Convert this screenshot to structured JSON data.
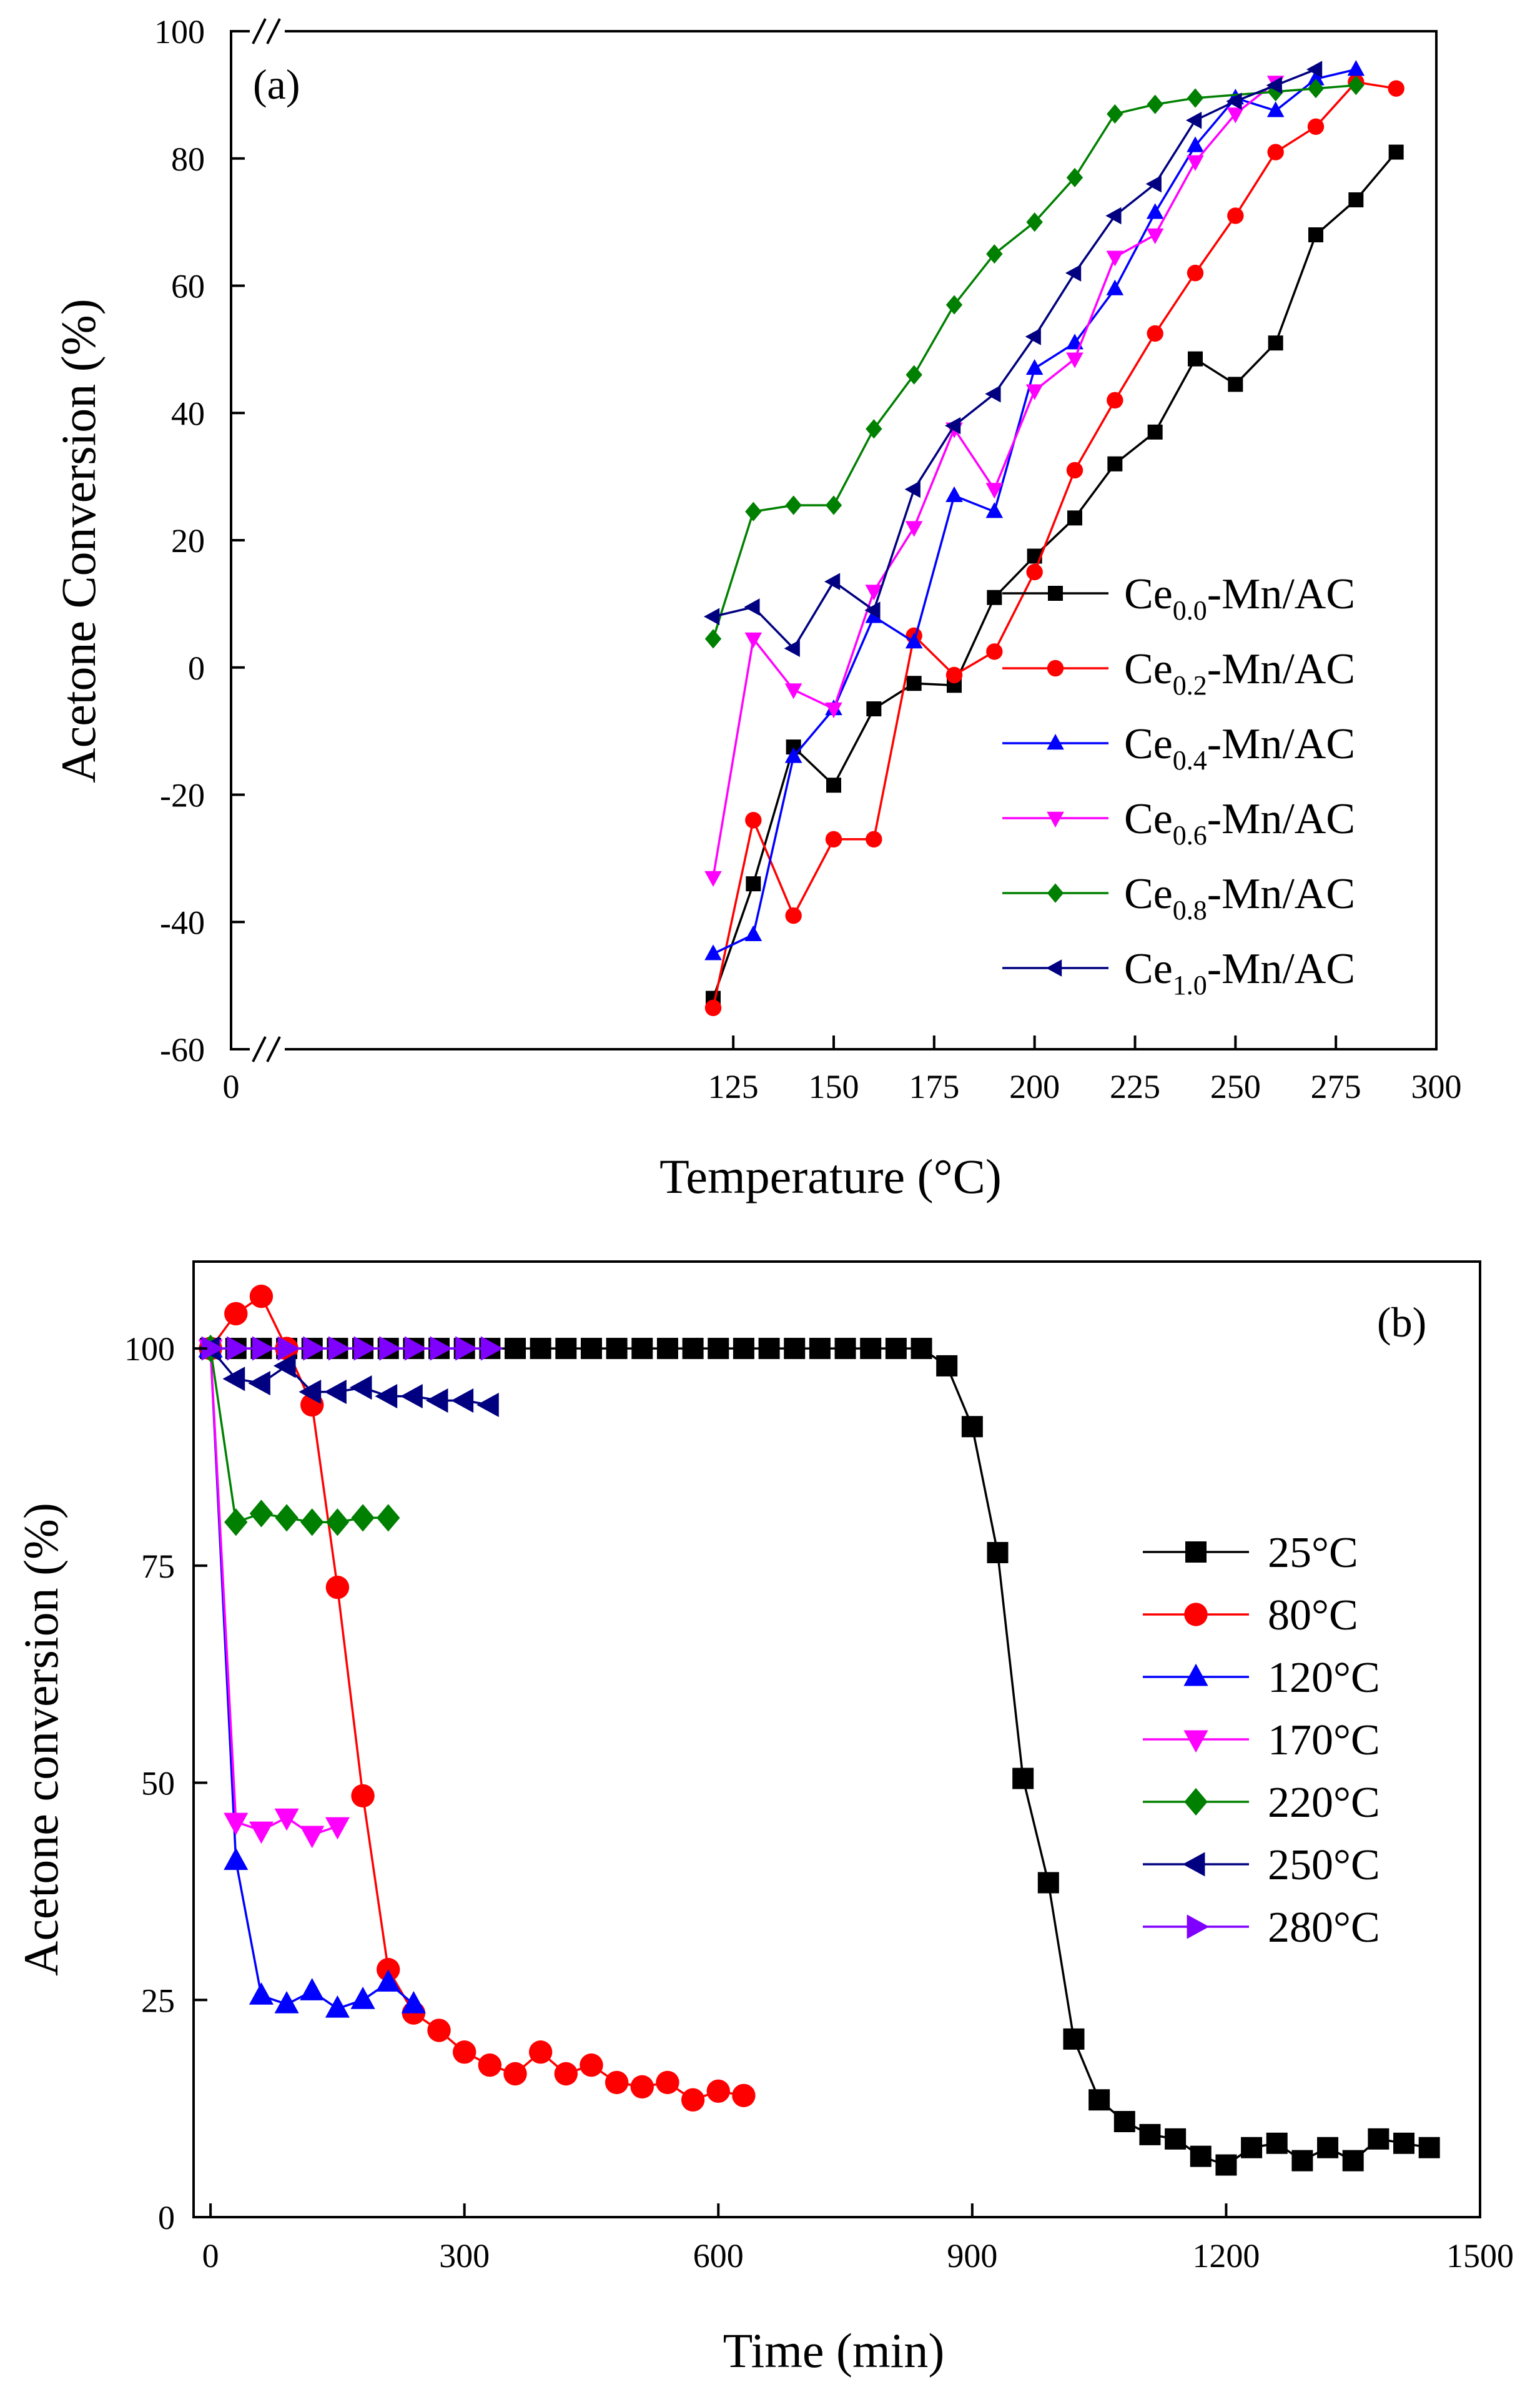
{
  "chart_data": [
    {
      "type": "line",
      "panel_label": "(a)",
      "xlabel": "Temperature (°C)",
      "ylabel": "Acetone Conversion (%)",
      "xlim": [
        0,
        300
      ],
      "ylim": [
        -60,
        100
      ],
      "axis_break": "x between 0 and 115; y below -60 and above 95",
      "x_ticks": [
        0,
        125,
        150,
        175,
        200,
        225,
        250,
        275,
        300
      ],
      "y_ticks": [
        -60,
        -40,
        -20,
        0,
        20,
        40,
        60,
        80,
        100
      ],
      "grid": false,
      "legend_position": "lower-right",
      "series": [
        {
          "name": "Ce0.0-Mn/AC",
          "legend_main": "Ce",
          "legend_sub": "0.0",
          "legend_tail": "-Mn/AC",
          "color": "#000000",
          "marker": "square",
          "x": [
            120,
            130,
            140,
            150,
            160,
            170,
            180,
            190,
            200,
            210,
            220,
            230,
            240,
            250,
            260,
            270,
            280,
            290
          ],
          "y": [
            -52,
            -34,
            -12.5,
            -18.5,
            -6.5,
            -2.5,
            -2.8,
            11,
            17.5,
            23.5,
            32,
            37,
            48.5,
            44.5,
            51,
            68,
            73.5,
            81
          ]
        },
        {
          "name": "Ce0.2-Mn/AC",
          "legend_main": "Ce",
          "legend_sub": "0.2",
          "legend_tail": "-Mn/AC",
          "color": "#ff0000",
          "marker": "circle",
          "x": [
            120,
            130,
            140,
            150,
            160,
            170,
            180,
            190,
            200,
            210,
            220,
            230,
            240,
            250,
            260,
            270,
            280,
            290
          ],
          "y": [
            -53.5,
            -24,
            -39,
            -27,
            -27,
            5,
            -1.2,
            2.5,
            15,
            31,
            42,
            52.5,
            62,
            71,
            81,
            85,
            92,
            91
          ]
        },
        {
          "name": "Ce0.4-Mn/AC",
          "legend_main": "Ce",
          "legend_sub": "0.4",
          "legend_tail": "-Mn/AC",
          "color": "#0000ff",
          "marker": "triangle-up",
          "x": [
            120,
            130,
            140,
            150,
            160,
            170,
            180,
            190,
            200,
            210,
            220,
            230,
            240,
            250,
            260,
            270,
            280
          ],
          "y": [
            -45,
            -42,
            -14,
            -6.5,
            8,
            4,
            27,
            24.5,
            47,
            51,
            59.5,
            71.5,
            82,
            89.5,
            87.5,
            92.5,
            94
          ]
        },
        {
          "name": "Ce0.6-Mn/AC",
          "legend_main": "Ce",
          "legend_sub": "0.6",
          "legend_tail": "-Mn/AC",
          "color": "#ff00ff",
          "marker": "triangle-down",
          "x": [
            120,
            130,
            140,
            150,
            160,
            170,
            180,
            190,
            200,
            210,
            220,
            230,
            240,
            250,
            260
          ],
          "y": [
            -33,
            4.5,
            -3.5,
            -6.5,
            12,
            22,
            37.5,
            28,
            43.5,
            48.5,
            64.5,
            68,
            79.5,
            87,
            92
          ]
        },
        {
          "name": "Ce0.8-Mn/AC",
          "legend_main": "Ce",
          "legend_sub": "0.8",
          "legend_tail": "-Mn/AC",
          "color": "#008000",
          "marker": "diamond",
          "x": [
            120,
            130,
            140,
            150,
            160,
            170,
            180,
            190,
            200,
            210,
            220,
            230,
            240,
            260,
            270,
            280
          ],
          "y": [
            4.5,
            24.5,
            25.5,
            25.5,
            37.5,
            46,
            57,
            65,
            70,
            77,
            87,
            88.5,
            89.5,
            90.5,
            91,
            91.5
          ]
        },
        {
          "name": "Ce1.0-Mn/AC",
          "legend_main": "Ce",
          "legend_sub": "1.0",
          "legend_tail": "-Mn/AC",
          "color": "#000080",
          "marker": "triangle-left",
          "x": [
            120,
            130,
            140,
            150,
            160,
            170,
            180,
            190,
            200,
            210,
            220,
            230,
            240,
            250,
            260,
            270
          ],
          "y": [
            8,
            9.5,
            3,
            13.5,
            9,
            28,
            38,
            43,
            52,
            62,
            71,
            76,
            86,
            89,
            91.5,
            94
          ]
        }
      ]
    },
    {
      "type": "line",
      "panel_label": "(b)",
      "xlabel": "Time (min)",
      "ylabel": "Acetone conversion (%)",
      "xlim": [
        -20,
        1500
      ],
      "ylim": [
        0,
        110
      ],
      "x_ticks": [
        0,
        300,
        600,
        900,
        1200,
        1500
      ],
      "y_ticks": [
        0,
        25,
        50,
        75,
        100
      ],
      "grid": false,
      "legend_position": "right",
      "series": [
        {
          "name": "25°C",
          "color": "#000000",
          "marker": "square",
          "x": [
            0,
            30,
            60,
            90,
            120,
            150,
            180,
            210,
            240,
            270,
            300,
            330,
            360,
            390,
            420,
            450,
            480,
            510,
            540,
            570,
            600,
            630,
            660,
            690,
            720,
            750,
            780,
            810,
            840,
            870,
            900,
            930,
            960,
            990,
            1020,
            1050,
            1080,
            1110,
            1140,
            1170,
            1200,
            1230,
            1260,
            1290,
            1320,
            1350,
            1380,
            1410,
            1440
          ],
          "y": [
            100,
            100,
            100,
            100,
            100,
            100,
            100,
            100,
            100,
            100,
            100,
            100,
            100,
            100,
            100,
            100,
            100,
            100,
            100,
            100,
            100,
            100,
            100,
            100,
            100,
            100,
            100,
            100,
            100,
            98,
            91,
            76.5,
            50.5,
            38.5,
            20.5,
            13.5,
            11,
            9.5,
            9,
            7,
            6,
            8,
            8.5,
            6.5,
            8,
            6.5,
            9,
            8.5,
            8
          ]
        },
        {
          "name": "80°C",
          "color": "#ff0000",
          "marker": "circle",
          "x": [
            0,
            30,
            60,
            90,
            120,
            150,
            180,
            210,
            240,
            270,
            300,
            330,
            360,
            390,
            420,
            450,
            480,
            510,
            540,
            570,
            600,
            630
          ],
          "y": [
            100,
            104,
            106,
            100,
            93.5,
            72.5,
            48.5,
            28.5,
            23.5,
            21.5,
            19,
            17.5,
            16.5,
            19,
            16.5,
            17.5,
            15.5,
            15,
            15.5,
            13.5,
            14.5,
            14
          ]
        },
        {
          "name": "120°C",
          "color": "#0000ff",
          "marker": "triangle-up",
          "x": [
            0,
            30,
            60,
            90,
            120,
            150,
            180,
            210,
            240
          ],
          "y": [
            100,
            41,
            25.5,
            24.5,
            26,
            24,
            25,
            27,
            24.5
          ]
        },
        {
          "name": "170°C",
          "color": "#ff00ff",
          "marker": "triangle-down",
          "x": [
            0,
            30,
            60,
            90,
            120,
            150
          ],
          "y": [
            100,
            45.5,
            44.5,
            46,
            44,
            45
          ]
        },
        {
          "name": "220°C",
          "color": "#008000",
          "marker": "diamond",
          "x": [
            0,
            30,
            60,
            90,
            120,
            150,
            180,
            210
          ],
          "y": [
            100,
            80,
            81,
            80.5,
            80,
            80,
            80.5,
            80.5
          ]
        },
        {
          "name": "250°C",
          "color": "#000080",
          "marker": "triangle-left",
          "x": [
            0,
            30,
            60,
            90,
            120,
            150,
            180,
            210,
            240,
            270,
            300,
            330
          ],
          "y": [
            100,
            96.5,
            96,
            98,
            95,
            95,
            95.5,
            94.5,
            94.5,
            94,
            94,
            93.5
          ]
        },
        {
          "name": "280°C",
          "color": "#8000ff",
          "marker": "triangle-right",
          "x": [
            0,
            30,
            60,
            90,
            120,
            150,
            180,
            210,
            240,
            270,
            300,
            330
          ],
          "y": [
            100,
            100,
            100,
            100,
            100,
            100,
            100,
            100,
            100,
            100,
            100,
            100
          ]
        }
      ]
    }
  ]
}
